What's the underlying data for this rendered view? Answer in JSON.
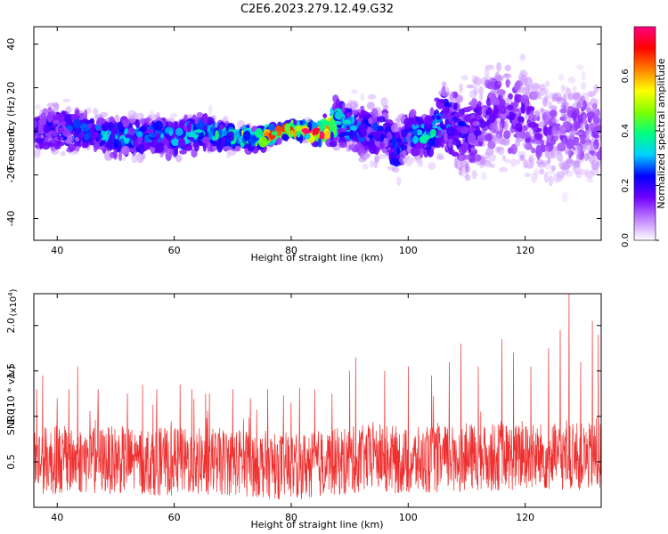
{
  "figure_title": "C2E6.2023.279.12.49.G32",
  "chart_data": [
    {
      "type": "heatmap",
      "xlabel": "Height of straight line (km)",
      "ylabel": "Frequency (Hz)",
      "xlim": [
        36,
        133
      ],
      "ylim": [
        -50,
        48
      ],
      "x_ticks": [
        40,
        60,
        80,
        100,
        120
      ],
      "y_ticks": [
        -40,
        -20,
        0,
        20,
        40
      ],
      "x_tick_labels": [
        "40",
        "60",
        "80",
        "100",
        "120"
      ],
      "y_tick_labels": [
        "-40",
        "-20",
        "0",
        "20",
        "40"
      ],
      "colorbar": {
        "label": "Normalized spectral amplitude",
        "range": [
          0,
          0.78
        ],
        "ticks": [
          0.0,
          0.2,
          0.4,
          0.6
        ],
        "tick_labels": [
          "0.0",
          "0.2",
          "0.4",
          "0.6"
        ],
        "colors": [
          "#ffffff",
          "#c080ff",
          "#7000ff",
          "#0000ff",
          "#00d0ff",
          "#00ff80",
          "#80ff00",
          "#ffff00",
          "#ff8000",
          "#ff0000",
          "#ff0080"
        ]
      },
      "ridge": {
        "x": [
          36,
          40,
          45,
          50,
          55,
          60,
          65,
          70,
          75,
          80,
          85,
          88,
          92,
          96,
          98,
          100,
          103,
          106,
          110,
          115,
          120,
          125,
          130,
          133
        ],
        "center": [
          0,
          1,
          0,
          -3,
          -2,
          -3,
          0,
          -3,
          -3,
          1,
          -1,
          5,
          0,
          0,
          -10,
          0,
          -3,
          5,
          0,
          10,
          5,
          0,
          2,
          0
        ],
        "spread": [
          10,
          10,
          8,
          8,
          8,
          8,
          8,
          5,
          4,
          3,
          4,
          10,
          12,
          12,
          12,
          10,
          8,
          15,
          20,
          22,
          22,
          22,
          22,
          20
        ],
        "amplitude": [
          0.15,
          0.18,
          0.22,
          0.25,
          0.22,
          0.25,
          0.25,
          0.35,
          0.45,
          0.55,
          0.65,
          0.3,
          0.2,
          0.18,
          0.2,
          0.2,
          0.3,
          0.22,
          0.15,
          0.12,
          0.12,
          0.1,
          0.1,
          0.1
        ]
      }
    },
    {
      "type": "line",
      "xlabel": "Height of straight line (km)",
      "ylabel": "SNR (10 * v/v)",
      "y_multiplier": "(x10",
      "y_multiplier_exp": "4",
      "y_multiplier_close": ")",
      "xlim": [
        36,
        133
      ],
      "ylim": [
        0,
        2.35
      ],
      "x_ticks": [
        40,
        60,
        80,
        100,
        120
      ],
      "x_tick_labels": [
        "40",
        "60",
        "80",
        "100",
        "120"
      ],
      "y_ticks": [
        0.5,
        1.0,
        1.5,
        2.0
      ],
      "y_tick_labels": [
        "0.5",
        "1.0",
        "1.5",
        "2.0"
      ],
      "series": [
        {
          "color": "#ee3030",
          "baseline": [
            [
              36,
              0.52
            ],
            [
              50,
              0.52
            ],
            [
              60,
              0.5
            ],
            [
              70,
              0.5
            ],
            [
              80,
              0.45
            ],
            [
              88,
              0.5
            ],
            [
              95,
              0.55
            ],
            [
              100,
              0.5
            ],
            [
              110,
              0.55
            ],
            [
              120,
              0.55
            ],
            [
              133,
              0.55
            ]
          ],
          "peaks": [
            [
              36.5,
              1.3
            ],
            [
              37.5,
              1.45
            ],
            [
              40,
              1.2
            ],
            [
              42,
              1.3
            ],
            [
              43.5,
              1.55
            ],
            [
              47,
              1.3
            ],
            [
              52,
              1.25
            ],
            [
              57,
              1.3
            ],
            [
              61,
              1.35
            ],
            [
              63,
              1.3
            ],
            [
              66,
              1.25
            ],
            [
              70,
              1.3
            ],
            [
              73,
              1.2
            ],
            [
              76,
              1.3
            ],
            [
              80,
              1.15
            ],
            [
              84,
              1.3
            ],
            [
              87,
              1.25
            ],
            [
              90,
              1.5
            ],
            [
              91,
              1.65
            ],
            [
              96,
              1.5
            ],
            [
              100,
              1.55
            ],
            [
              104,
              1.45
            ],
            [
              107,
              1.6
            ],
            [
              109,
              1.8
            ],
            [
              112,
              1.55
            ],
            [
              116,
              1.85
            ],
            [
              118,
              1.7
            ],
            [
              121,
              1.55
            ],
            [
              124,
              1.75
            ],
            [
              126,
              1.95
            ],
            [
              127.5,
              2.35
            ],
            [
              129.5,
              1.6
            ],
            [
              131.5,
              2.05
            ],
            [
              132.5,
              1.9
            ]
          ]
        }
      ]
    }
  ]
}
